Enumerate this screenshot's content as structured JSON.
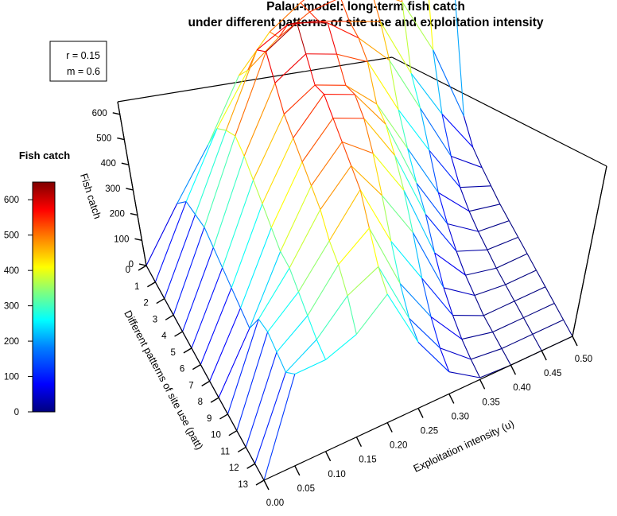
{
  "chart_data": {
    "type": "surface",
    "title": "Palau-model: long-term fish catch",
    "subtitle": "under different patterns of site use and exploitation intensity",
    "params": [
      "r = 0.15",
      "m = 0.6"
    ],
    "xlabel": "Exploitation intensity (u)",
    "ylabel": "Different patterns of site use (patt)",
    "zlabel": "Fish catch",
    "x_ticks": [
      "0.00",
      "0.05",
      "0.10",
      "0.15",
      "0.20",
      "0.25",
      "0.30",
      "0.35",
      "0.40",
      "0.45",
      "0.50"
    ],
    "y_ticks": [
      "0",
      "1",
      "2",
      "3",
      "4",
      "5",
      "6",
      "7",
      "8",
      "9",
      "10",
      "11",
      "12",
      "13"
    ],
    "z_ticks": [
      "0",
      "100",
      "200",
      "300",
      "400",
      "500",
      "600"
    ],
    "zlim": [
      0,
      650
    ],
    "x": [
      0.0,
      0.05,
      0.1,
      0.15,
      0.2,
      0.25,
      0.3,
      0.35,
      0.4,
      0.45,
      0.5
    ],
    "patt": [
      0,
      1,
      2,
      3,
      4,
      5,
      6,
      7,
      8,
      9,
      10,
      11,
      12,
      13
    ],
    "z": [
      [
        0,
        130,
        250,
        400,
        480,
        520,
        550,
        560,
        570,
        540,
        350
      ],
      [
        0,
        180,
        340,
        460,
        510,
        540,
        540,
        520,
        450,
        280,
        60
      ],
      [
        0,
        190,
        380,
        560,
        590,
        560,
        520,
        480,
        300,
        150,
        20
      ],
      [
        0,
        200,
        410,
        600,
        640,
        600,
        520,
        420,
        250,
        80,
        10
      ],
      [
        0,
        190,
        400,
        560,
        600,
        560,
        500,
        330,
        180,
        40,
        5
      ],
      [
        0,
        180,
        380,
        520,
        560,
        520,
        430,
        270,
        110,
        20,
        0
      ],
      [
        0,
        170,
        360,
        500,
        580,
        540,
        420,
        220,
        70,
        10,
        0
      ],
      [
        0,
        160,
        340,
        480,
        560,
        520,
        380,
        180,
        40,
        5,
        0
      ],
      [
        0,
        150,
        320,
        460,
        540,
        470,
        330,
        120,
        20,
        0,
        0
      ],
      [
        0,
        220,
        320,
        440,
        520,
        400,
        260,
        70,
        10,
        0,
        0
      ],
      [
        0,
        230,
        300,
        400,
        500,
        320,
        180,
        40,
        0,
        0,
        0
      ],
      [
        0,
        220,
        280,
        380,
        440,
        250,
        120,
        20,
        0,
        0,
        0
      ],
      [
        0,
        210,
        260,
        340,
        380,
        200,
        80,
        10,
        0,
        0,
        0
      ],
      [
        0,
        250,
        250,
        280,
        350,
        180,
        60,
        5,
        0,
        0,
        0
      ]
    ],
    "legend": {
      "title": "Fish catch",
      "ticks": [
        "0",
        "100",
        "200",
        "300",
        "400",
        "500",
        "600"
      ],
      "range": [
        0,
        650
      ],
      "colormap": "rainbow (blue-cyan-green-yellow-orange-red-dark red)"
    },
    "grid": false
  }
}
